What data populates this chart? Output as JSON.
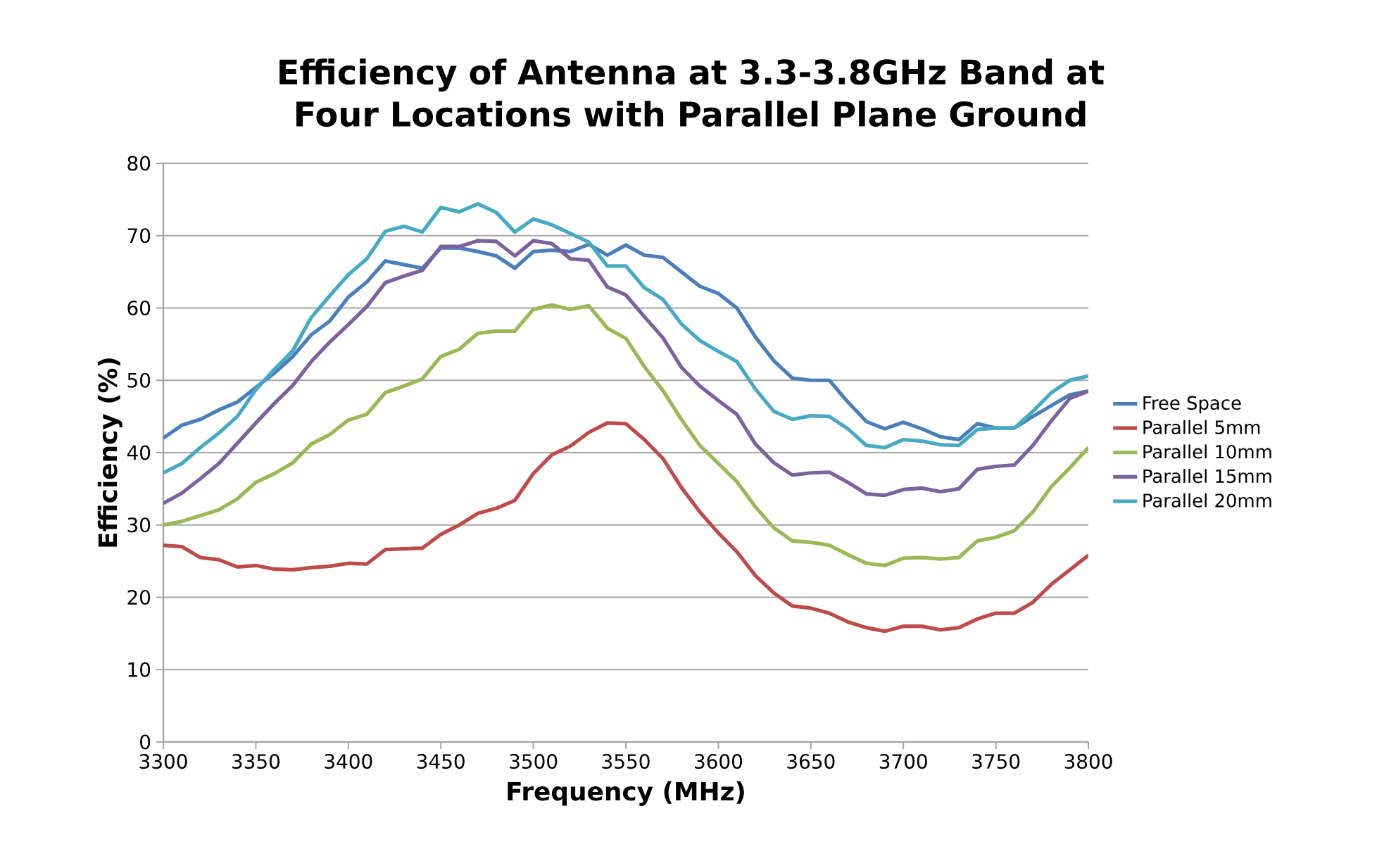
{
  "chart_data": {
    "type": "line",
    "title": "Efficiency of Antenna at 3.3-3.8GHz Band at Four Locations with Parallel Plane Ground",
    "xlabel": "Frequency  (MHz)",
    "ylabel": "Efficiency (%)",
    "x": [
      3300,
      3310,
      3320,
      3330,
      3340,
      3350,
      3360,
      3370,
      3380,
      3390,
      3400,
      3410,
      3420,
      3430,
      3440,
      3450,
      3460,
      3470,
      3480,
      3490,
      3500,
      3510,
      3520,
      3530,
      3540,
      3550,
      3560,
      3570,
      3580,
      3590,
      3600,
      3610,
      3620,
      3630,
      3640,
      3650,
      3660,
      3670,
      3680,
      3690,
      3700,
      3710,
      3720,
      3730,
      3740,
      3750,
      3760,
      3770,
      3780,
      3790,
      3800
    ],
    "series": [
      {
        "name": "Free Space",
        "color": "#4a7ebb",
        "values": [
          42,
          43.8,
          44.6,
          45.9,
          47,
          49,
          51,
          53.3,
          56.3,
          58.2,
          61.5,
          63.6,
          66.5,
          66,
          65.5,
          68.3,
          68.3,
          67.8,
          67.2,
          65.5,
          67.8,
          68,
          67.8,
          68.8,
          67.3,
          68.7,
          67.3,
          67,
          65,
          63,
          62,
          60,
          56,
          52.7,
          50.3,
          50,
          50,
          47,
          44.3,
          43.3,
          44.2,
          43.3,
          42.2,
          41.8,
          44,
          43.4,
          43.4,
          45,
          46.5,
          48,
          48.5
        ]
      },
      {
        "name": "Parallel 5mm",
        "color": "#be4b48",
        "values": [
          27.2,
          27,
          25.5,
          25.2,
          24.2,
          24.4,
          23.9,
          23.8,
          24.1,
          24.3,
          24.7,
          24.6,
          26.6,
          26.7,
          26.8,
          28.7,
          30,
          31.6,
          32.3,
          33.4,
          37.1,
          39.7,
          40.9,
          42.8,
          44.1,
          44,
          41.8,
          39.2,
          35.2,
          31.8,
          28.9,
          26.3,
          23,
          20.6,
          18.8,
          18.5,
          17.8,
          16.6,
          15.8,
          15.3,
          16,
          16,
          15.5,
          15.8,
          17,
          17.8,
          17.8,
          19.3,
          21.8,
          23.8,
          25.8
        ]
      },
      {
        "name": "Parallel 10mm",
        "color": "#98b954",
        "values": [
          30,
          30.5,
          31.3,
          32.1,
          33.6,
          35.9,
          37.1,
          38.6,
          41.2,
          42.5,
          44.5,
          45.3,
          48.3,
          49.2,
          50.2,
          53.3,
          54.3,
          56.5,
          56.8,
          56.8,
          59.8,
          60.4,
          59.8,
          60.3,
          57.2,
          55.8,
          51.9,
          48.6,
          44.6,
          41,
          38.5,
          36,
          32.5,
          29.6,
          27.8,
          27.6,
          27.2,
          25.9,
          24.7,
          24.4,
          25.4,
          25.5,
          25.3,
          25.5,
          27.8,
          28.3,
          29.2,
          31.8,
          35.3,
          37.9,
          40.7
        ]
      },
      {
        "name": "Parallel 15mm",
        "color": "#7d60a0",
        "values": [
          33,
          34.4,
          36.4,
          38.5,
          41.3,
          44.1,
          46.8,
          49.3,
          52.6,
          55.3,
          57.7,
          60.2,
          63.5,
          64.4,
          65.2,
          68.5,
          68.5,
          69.3,
          69.2,
          67.2,
          69.3,
          68.9,
          66.8,
          66.6,
          62.9,
          61.8,
          58.8,
          55.9,
          51.8,
          49.2,
          47.2,
          45.3,
          41.2,
          38.6,
          36.9,
          37.2,
          37.3,
          35.9,
          34.3,
          34.1,
          34.9,
          35.1,
          34.6,
          35,
          37.7,
          38.1,
          38.3,
          41,
          44.4,
          47.5,
          48.5
        ]
      },
      {
        "name": "Parallel 20mm",
        "color": "#46aac5",
        "values": [
          37.2,
          38.5,
          40.7,
          42.7,
          45,
          48.7,
          51.5,
          54.1,
          58.7,
          61.7,
          64.6,
          66.8,
          70.6,
          71.3,
          70.5,
          73.9,
          73.3,
          74.4,
          73.2,
          70.5,
          72.3,
          71.5,
          70.3,
          69.1,
          65.8,
          65.8,
          62.8,
          61.2,
          57.8,
          55.5,
          54,
          52.6,
          48.8,
          45.7,
          44.6,
          45.1,
          45,
          43.3,
          41,
          40.7,
          41.8,
          41.6,
          41.1,
          41,
          43.2,
          43.4,
          43.4,
          45.7,
          48.3,
          50,
          50.6
        ]
      }
    ],
    "xlim": [
      3300,
      3800
    ],
    "xticks": [
      3300,
      3350,
      3400,
      3450,
      3500,
      3550,
      3600,
      3650,
      3700,
      3750,
      3800
    ],
    "ylim": [
      0,
      80
    ],
    "yticks": [
      0,
      10,
      20,
      30,
      40,
      50,
      60,
      70,
      80
    ],
    "grid": "y",
    "legend": "right",
    "marker": "none",
    "line_style": "solid"
  }
}
